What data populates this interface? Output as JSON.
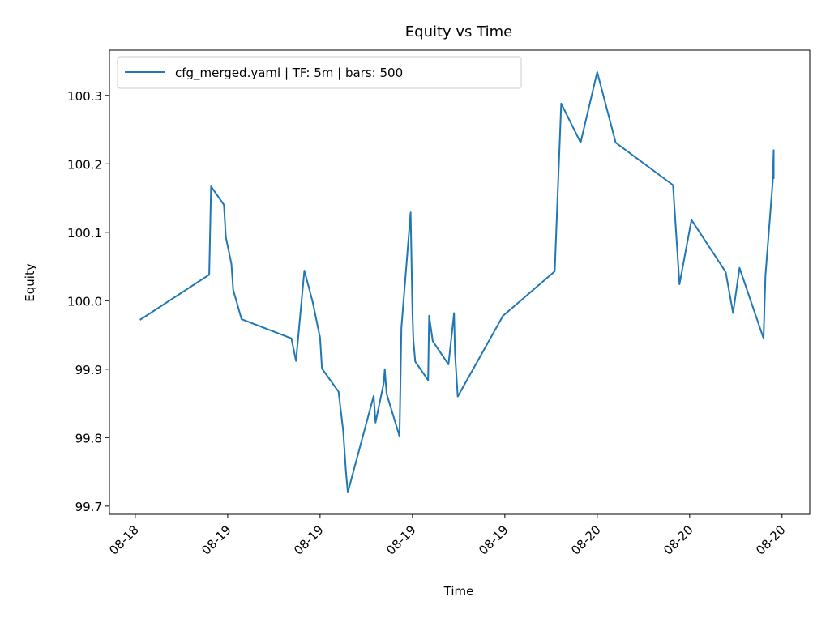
{
  "chart_data": {
    "type": "line",
    "title": "Equity vs Time",
    "xlabel": "Time",
    "ylabel": "Equity",
    "ylim": [
      99.688,
      100.366
    ],
    "yticks": [
      99.7,
      99.8,
      99.9,
      100.0,
      100.1,
      100.2,
      100.3
    ],
    "ytick_labels": [
      "99.7",
      "99.8",
      "99.9",
      "100.0",
      "100.1",
      "100.2",
      "100.3"
    ],
    "xlim": [
      -0.28,
      7.3
    ],
    "xticks": [
      0,
      1,
      2,
      3,
      4,
      5,
      6,
      7
    ],
    "xtick_labels": [
      "08-18",
      "08-19",
      "08-19",
      "08-19",
      "08-19",
      "08-20",
      "08-20",
      "08-20"
    ],
    "grid": false,
    "legend_position": "upper-left",
    "color": "#1f77b4",
    "series": [
      {
        "name": "cfg_merged.yaml | TF: 5m | bars: 500",
        "x": [
          0.05,
          0.8,
          0.82,
          0.96,
          0.98,
          1.04,
          1.06,
          1.15,
          1.69,
          1.74,
          1.83,
          1.92,
          2.0,
          2.02,
          2.2,
          2.25,
          2.28,
          2.3,
          2.58,
          2.6,
          2.69,
          2.7,
          2.72,
          2.86,
          2.88,
          2.98,
          3.0,
          3.01,
          3.03,
          3.17,
          3.18,
          3.22,
          3.39,
          3.45,
          3.46,
          3.49,
          3.98,
          4.54,
          4.57,
          4.61,
          4.82,
          5.0,
          5.2,
          5.82,
          5.89,
          6.02,
          6.39,
          6.47,
          6.54,
          6.8,
          6.82,
          6.9,
          6.91,
          6.91
        ],
        "y": [
          99.972,
          100.038,
          100.167,
          100.14,
          100.093,
          100.054,
          100.016,
          99.973,
          99.945,
          99.912,
          100.044,
          99.998,
          99.946,
          99.901,
          99.867,
          99.81,
          99.75,
          99.72,
          99.861,
          99.822,
          99.88,
          99.9,
          99.864,
          99.802,
          99.96,
          100.129,
          99.98,
          99.942,
          99.911,
          99.884,
          99.978,
          99.941,
          99.907,
          99.982,
          99.925,
          99.86,
          99.978,
          100.043,
          100.148,
          100.288,
          100.231,
          100.334,
          100.231,
          100.169,
          100.024,
          100.118,
          100.042,
          99.982,
          100.048,
          99.945,
          100.036,
          100.175,
          100.22,
          100.178
        ]
      }
    ]
  }
}
